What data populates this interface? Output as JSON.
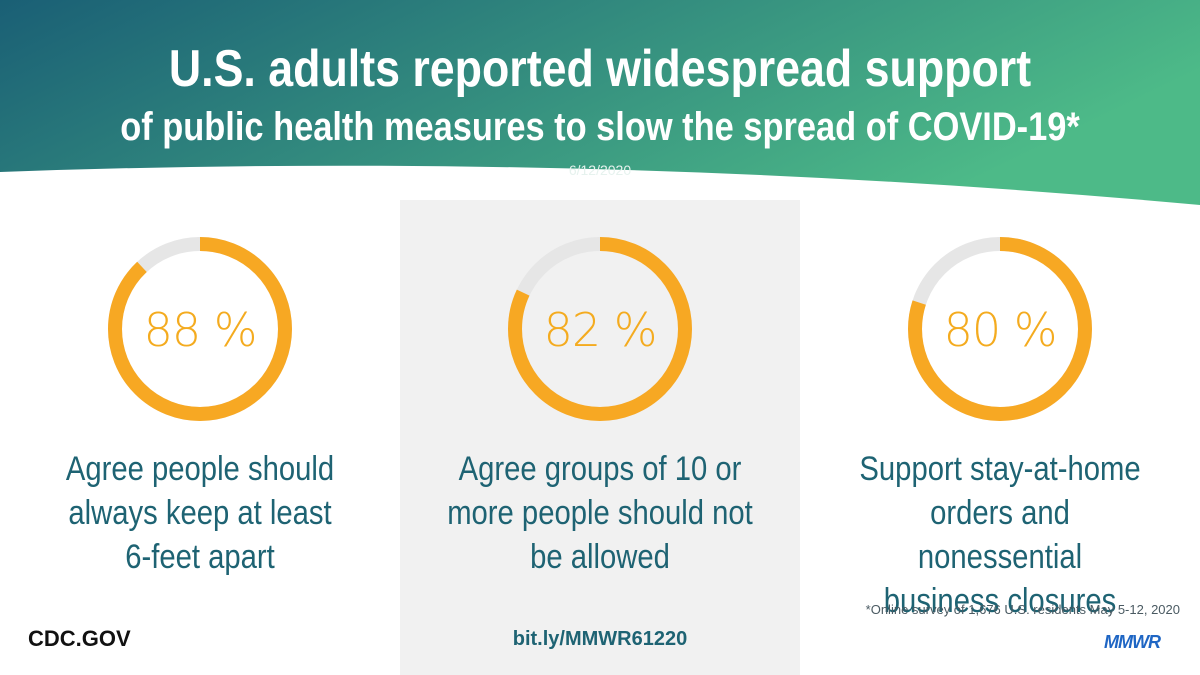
{
  "header": {
    "title": "U.S. adults reported widespread support",
    "subtitle": "of public health measures to slow the spread of COVID-19*",
    "date": "6/12/2020"
  },
  "colors": {
    "header_gradient_start": "#1a5f75",
    "header_gradient_end": "#4dba88",
    "ring_fill": "#f7a823",
    "ring_track": "#e6e6e6",
    "text_teal": "#1e6373",
    "percent_color": "#f4ab1f"
  },
  "chart_data": [
    {
      "type": "pie",
      "value": 88,
      "max": 100,
      "label": "88 %",
      "description": [
        "Agree people should",
        "always keep at least",
        "6-feet apart"
      ]
    },
    {
      "type": "pie",
      "value": 82,
      "max": 100,
      "label": "82 %",
      "description": [
        "Agree groups of 10 or",
        "more people should not",
        "be allowed"
      ]
    },
    {
      "type": "pie",
      "value": 80,
      "max": 100,
      "label": "80 %",
      "description": [
        "Support stay-at-home",
        "orders and nonessential",
        "business closures"
      ]
    }
  ],
  "footer": {
    "footnote": "*Online survey of 1,676 U.S. residents May 5-12, 2020",
    "site": "CDC.GOV",
    "link": "bit.ly/MMWR61220",
    "logo": "MMWR"
  }
}
